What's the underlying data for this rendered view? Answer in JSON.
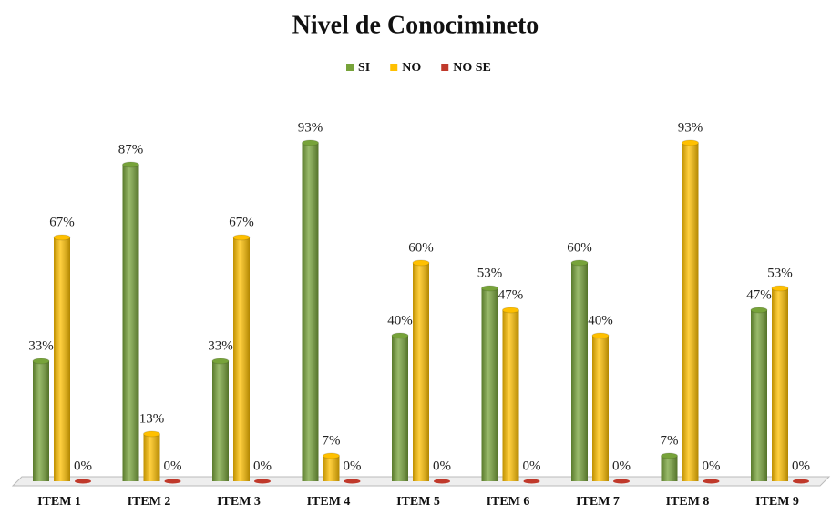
{
  "chart_data": {
    "type": "bar",
    "title": "Nivel de Conocimineto",
    "categories": [
      "ITEM 1",
      "ITEM 2",
      "ITEM 3",
      "ITEM 4",
      "ITEM 5",
      "ITEM 6",
      "ITEM 7",
      "ITEM 8",
      "ITEM 9"
    ],
    "series": [
      {
        "name": "SI",
        "color": "#77a33a",
        "values": [
          33,
          87,
          33,
          93,
          40,
          53,
          60,
          7,
          47
        ],
        "value_labels": [
          "33%",
          "87%",
          "33%",
          "93%",
          "40%",
          "53%",
          "60%",
          "7%",
          "47%"
        ]
      },
      {
        "name": "NO",
        "color": "#ffc000",
        "values": [
          67,
          13,
          67,
          7,
          60,
          47,
          40,
          93,
          53
        ],
        "value_labels": [
          "67%",
          "13%",
          "67%",
          "7%",
          "60%",
          "47%",
          "40%",
          "93%",
          "53%"
        ]
      },
      {
        "name": "NO SE",
        "color": "#c0392b",
        "values": [
          0,
          0,
          0,
          0,
          0,
          0,
          0,
          0,
          0
        ],
        "value_labels": [
          "0%",
          "0%",
          "0%",
          "0%",
          "0%",
          "0%",
          "0%",
          "0%",
          "0%"
        ]
      }
    ],
    "legend": "top"
  }
}
